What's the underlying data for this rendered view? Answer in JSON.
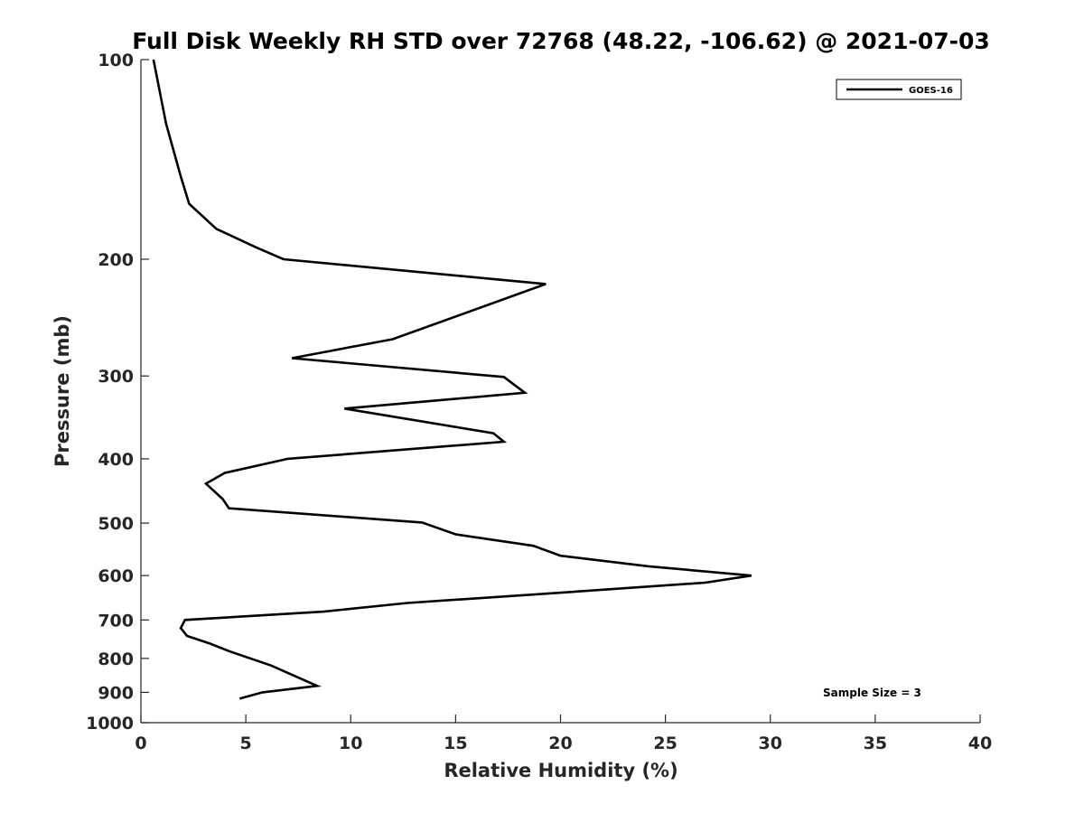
{
  "chart_data": {
    "type": "line",
    "title": "Full Disk Weekly RH STD over 72768 (48.22, -106.62) @ 2021-07-03",
    "xlabel": "Relative Humidity (%)",
    "ylabel": "Pressure (mb)",
    "xlim": [
      0,
      40
    ],
    "ylim": [
      100,
      1000
    ],
    "y_scale": "log",
    "y_reversed": true,
    "x_ticks": [
      "0",
      "5",
      "10",
      "15",
      "20",
      "25",
      "30",
      "35",
      "40"
    ],
    "y_ticks": [
      "100",
      "200",
      "300",
      "400",
      "500",
      "600",
      "700",
      "800",
      "900",
      "1000"
    ],
    "legend": {
      "position": "top-right",
      "entries": [
        "GOES-16"
      ]
    },
    "annotation": "Sample Size = 3",
    "grid": false,
    "series": [
      {
        "name": "GOES-16",
        "color": "#000000",
        "points": [
          [
            0.6,
            100
          ],
          [
            1.2,
            125
          ],
          [
            1.9,
            150
          ],
          [
            2.3,
            165
          ],
          [
            3.6,
            180
          ],
          [
            5.5,
            192
          ],
          [
            6.8,
            200
          ],
          [
            19.3,
            218
          ],
          [
            12.0,
            264
          ],
          [
            7.2,
            282
          ],
          [
            17.3,
            301
          ],
          [
            18.3,
            318
          ],
          [
            9.7,
            336
          ],
          [
            16.8,
            366
          ],
          [
            17.3,
            377
          ],
          [
            7.0,
            400
          ],
          [
            4.0,
            420
          ],
          [
            3.1,
            436
          ],
          [
            3.9,
            460
          ],
          [
            4.2,
            475
          ],
          [
            13.4,
            499
          ],
          [
            15.0,
            520
          ],
          [
            18.7,
            541
          ],
          [
            20.0,
            560
          ],
          [
            24.2,
            581
          ],
          [
            29.1,
            600
          ],
          [
            26.9,
            615
          ],
          [
            19.0,
            640
          ],
          [
            12.7,
            660
          ],
          [
            8.7,
            680
          ],
          [
            2.1,
            700
          ],
          [
            1.9,
            720
          ],
          [
            2.2,
            740
          ],
          [
            3.3,
            760
          ],
          [
            4.2,
            780
          ],
          [
            6.2,
            820
          ],
          [
            8.4,
            880
          ],
          [
            5.8,
            900
          ],
          [
            4.7,
            920
          ]
        ]
      }
    ]
  }
}
